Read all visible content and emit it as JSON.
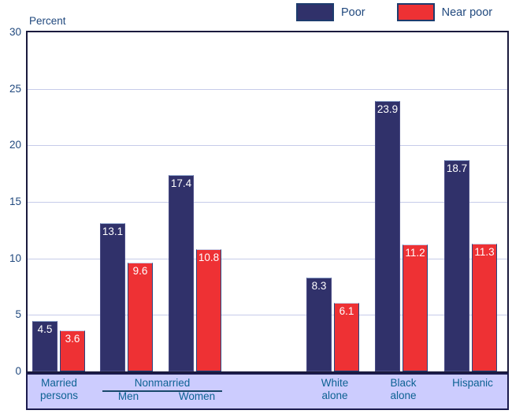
{
  "y_axis_title": "Percent",
  "legend": {
    "items": [
      {
        "label": "Poor"
      },
      {
        "label": "Near poor"
      }
    ]
  },
  "x_band": {
    "married": [
      "Married",
      "persons"
    ],
    "nonmarried": "Nonmarried",
    "men": "Men",
    "women": "Women",
    "white": [
      "White",
      "alone"
    ],
    "black": [
      "Black",
      "alone"
    ],
    "hispanic": "Hispanic"
  },
  "colors": {
    "poor_bar": "#30316a",
    "near_poor_bar": "#ee3134",
    "band_background": "#ccccfe",
    "band_text": "#0d6293",
    "axis_text": "#21497e",
    "gridline": "#c6cbe9",
    "plot_border": "#1a1a3d"
  },
  "chart_data": {
    "type": "bar",
    "title": "",
    "xlabel": "",
    "ylabel": "Percent",
    "ylim": [
      0,
      30
    ],
    "yticks": [
      30,
      25,
      20,
      15,
      10,
      5,
      0
    ],
    "grid": true,
    "legend_position": "top-right",
    "categories": [
      "Married persons",
      "Nonmarried Men",
      "Nonmarried Women",
      "White alone",
      "Black alone",
      "Hispanic"
    ],
    "series": [
      {
        "name": "Poor",
        "color": "#30316a",
        "values": [
          4.5,
          13.1,
          17.4,
          8.3,
          23.9,
          18.7
        ]
      },
      {
        "name": "Near poor",
        "color": "#ee3134",
        "values": [
          3.6,
          9.6,
          10.8,
          6.1,
          11.2,
          11.3
        ]
      }
    ]
  }
}
